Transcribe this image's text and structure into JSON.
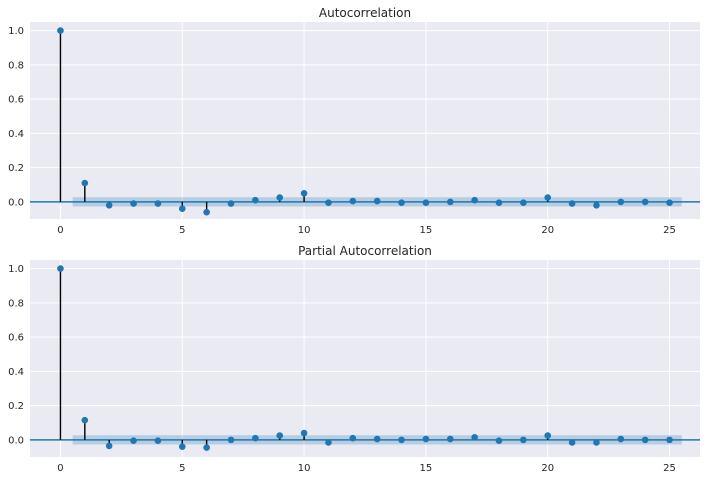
{
  "chart_data": [
    {
      "type": "stem",
      "title": "Autocorrelation",
      "x": [
        0,
        1,
        2,
        3,
        4,
        5,
        6,
        7,
        8,
        9,
        10,
        11,
        12,
        13,
        14,
        15,
        16,
        17,
        18,
        19,
        20,
        21,
        22,
        23,
        24,
        25
      ],
      "values": [
        1.0,
        0.11,
        -0.02,
        -0.01,
        -0.01,
        -0.04,
        -0.06,
        -0.01,
        0.01,
        0.025,
        0.05,
        -0.005,
        0.005,
        0.005,
        -0.005,
        -0.005,
        0.0,
        0.01,
        -0.005,
        -0.005,
        0.025,
        -0.01,
        -0.02,
        0.0,
        0.0,
        -0.005
      ],
      "confidence_band": 0.027,
      "xticks": [
        "0",
        "5",
        "10",
        "15",
        "20",
        "25"
      ],
      "yticks": [
        "0.0",
        "0.2",
        "0.4",
        "0.6",
        "0.8",
        "1.0"
      ],
      "xlim": [
        -1.25,
        26.25
      ],
      "ylim": [
        -0.1,
        1.05
      ],
      "grid": true
    },
    {
      "type": "stem",
      "title": "Partial Autocorrelation",
      "x": [
        0,
        1,
        2,
        3,
        4,
        5,
        6,
        7,
        8,
        9,
        10,
        11,
        12,
        13,
        14,
        15,
        16,
        17,
        18,
        19,
        20,
        21,
        22,
        23,
        24,
        25
      ],
      "values": [
        1.0,
        0.115,
        -0.035,
        -0.005,
        -0.005,
        -0.04,
        -0.045,
        0.0,
        0.01,
        0.025,
        0.04,
        -0.015,
        0.01,
        0.005,
        0.0,
        0.005,
        0.005,
        0.015,
        -0.005,
        0.0,
        0.025,
        -0.015,
        -0.015,
        0.005,
        0.0,
        0.0
      ],
      "confidence_band": 0.027,
      "xticks": [
        "0",
        "5",
        "10",
        "15",
        "20",
        "25"
      ],
      "yticks": [
        "0.0",
        "0.2",
        "0.4",
        "0.6",
        "0.8",
        "1.0"
      ],
      "xlim": [
        -1.25,
        26.25
      ],
      "ylim": [
        -0.1,
        1.05
      ],
      "grid": true
    }
  ],
  "colors": {
    "marker": "#1f77b4",
    "stem": "#000000",
    "background": "#eaeaf2",
    "grid": "#ffffff"
  }
}
